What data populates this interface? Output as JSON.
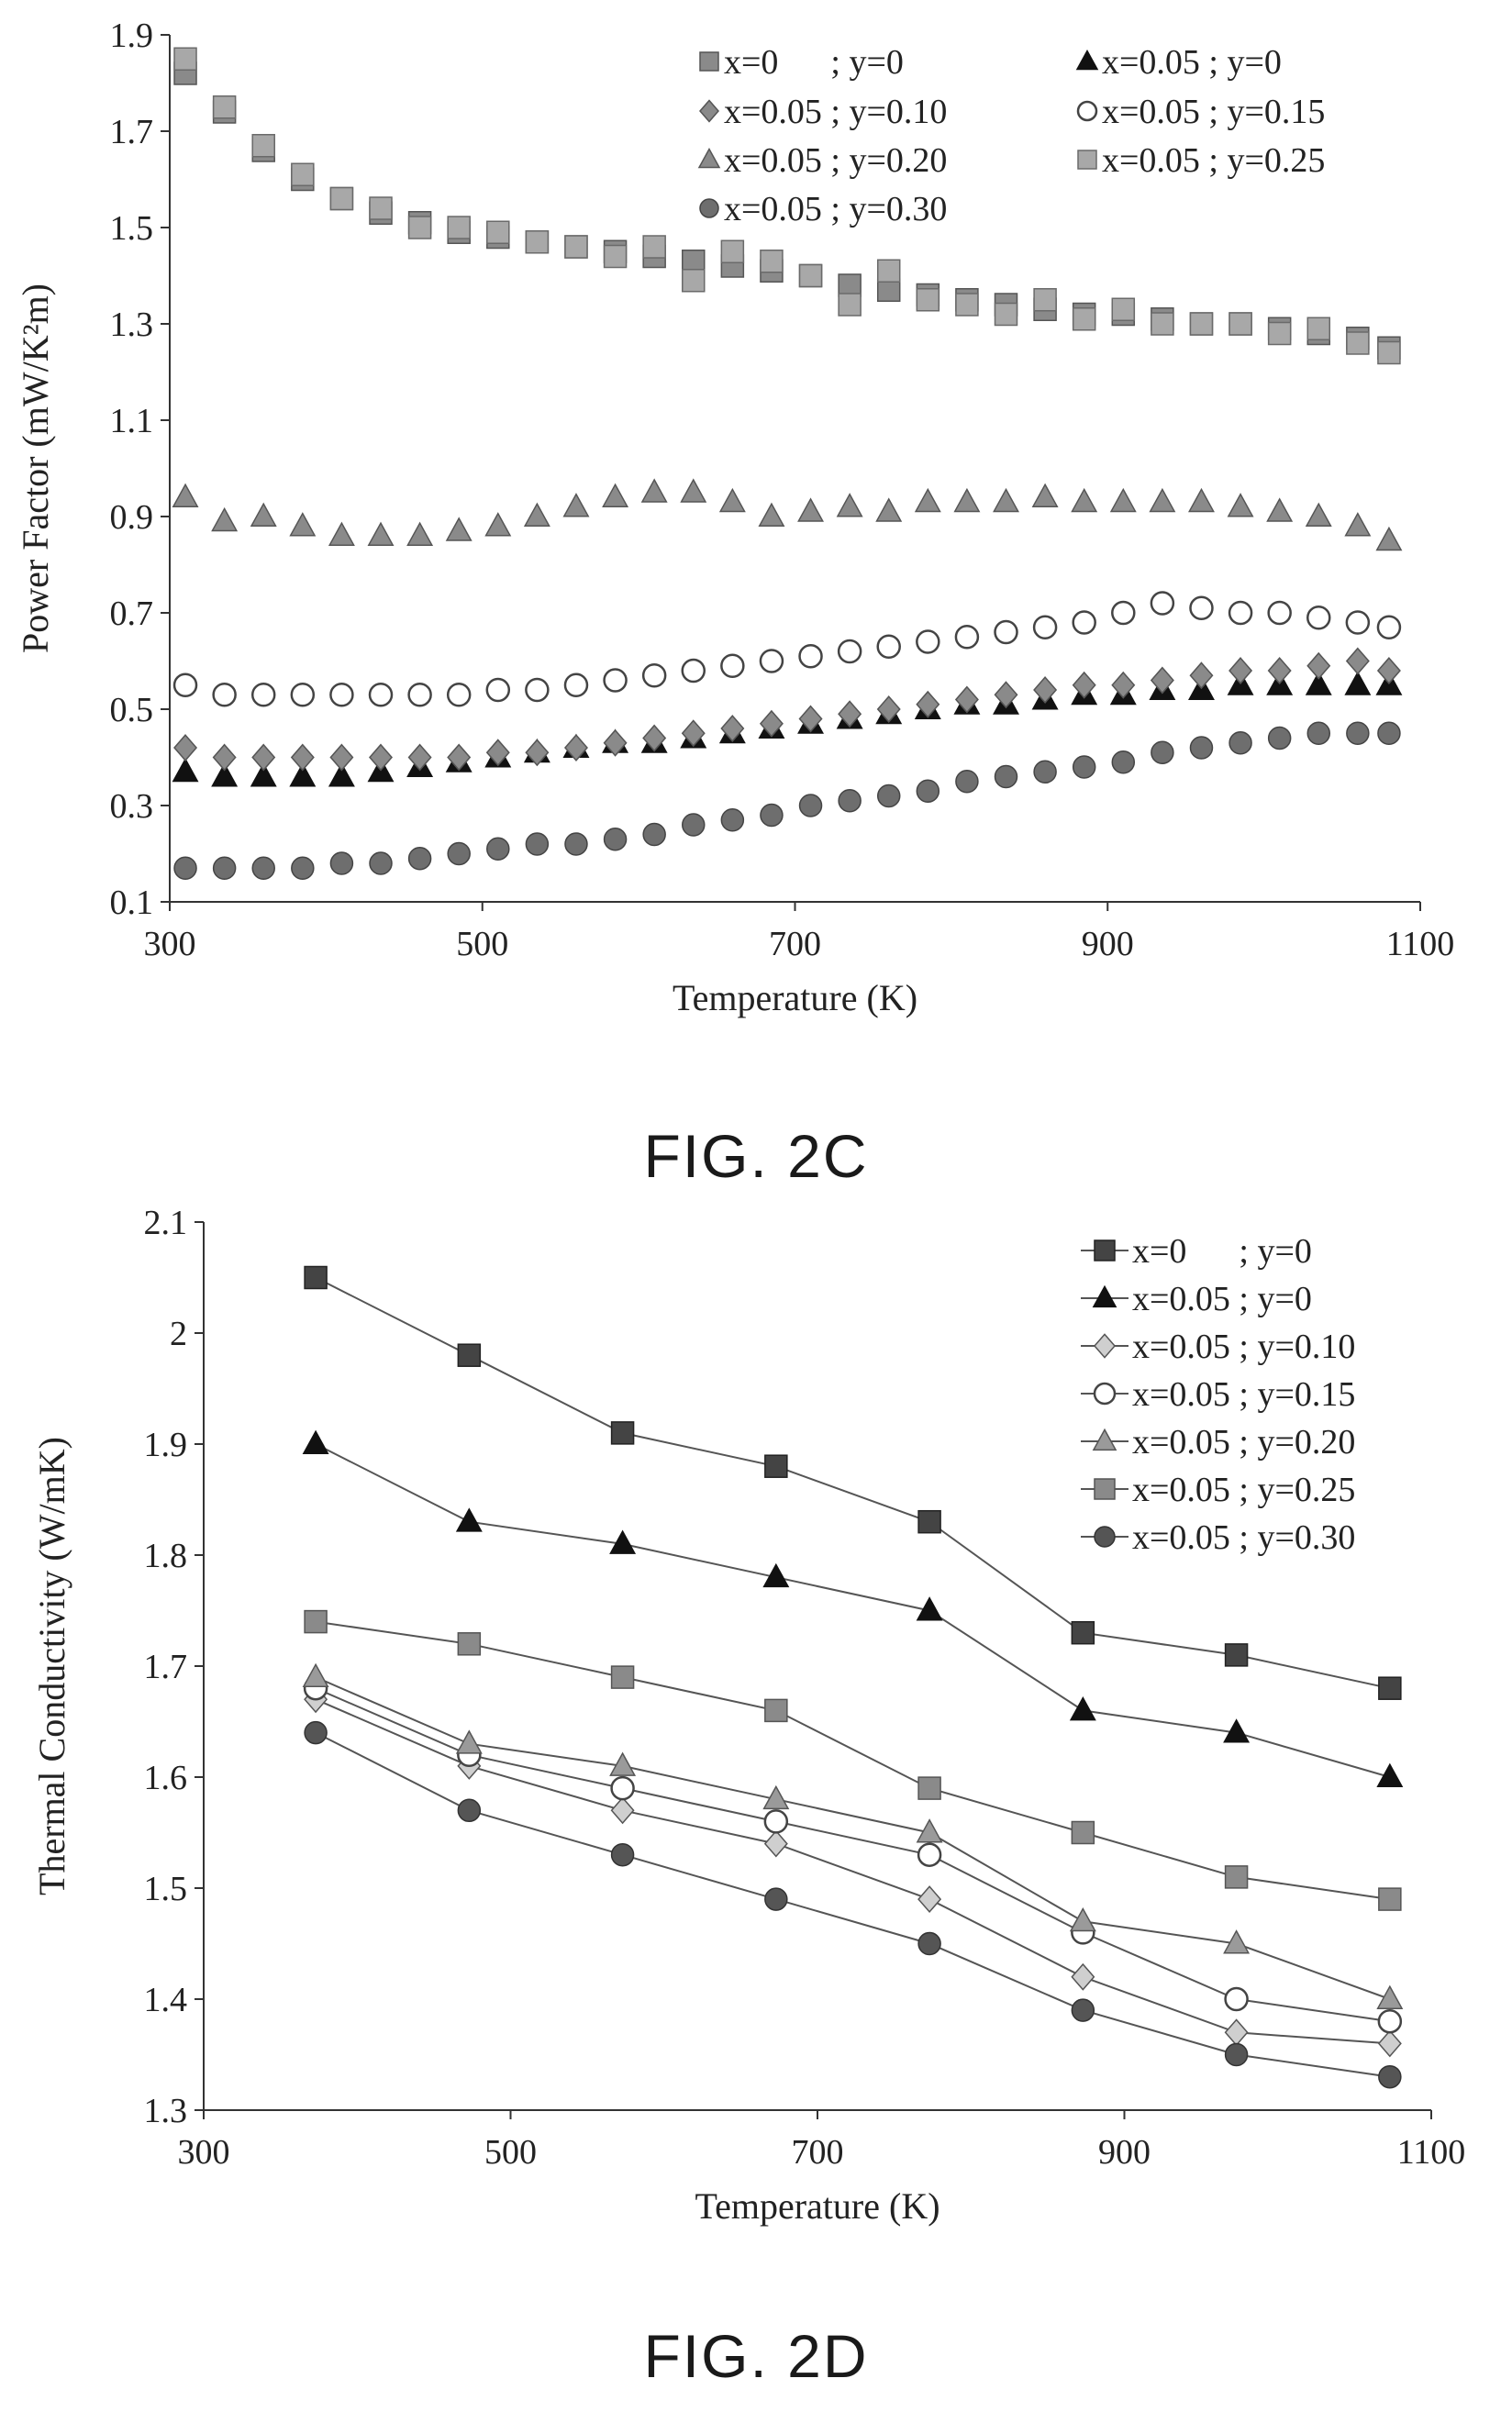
{
  "figures": [
    {
      "caption": "FIG. 2C",
      "chart_data": {
        "type": "scatter",
        "xlabel": "Temperature (K)",
        "ylabel": "Power Factor (mW/K²m)",
        "xlim": [
          300,
          1100
        ],
        "ylim": [
          0.1,
          1.9
        ],
        "xticks": [
          300,
          500,
          700,
          900,
          1100
        ],
        "yticks": [
          0.1,
          0.3,
          0.5,
          0.7,
          0.9,
          1.1,
          1.3,
          1.5,
          1.7,
          1.9
        ],
        "grid": false,
        "legend_position": "top-right",
        "x": [
          310,
          335,
          360,
          385,
          410,
          435,
          460,
          485,
          510,
          535,
          560,
          585,
          610,
          635,
          660,
          685,
          710,
          735,
          760,
          785,
          810,
          835,
          860,
          885,
          910,
          935,
          960,
          985,
          1010,
          1035,
          1060,
          1080
        ],
        "series": [
          {
            "name": "x=0      ; y=0",
            "marker": "square",
            "fill": "#8a8a8a",
            "stroke": "#555555",
            "values": [
              1.82,
              1.74,
              1.66,
              1.6,
              1.56,
              1.53,
              1.51,
              1.49,
              1.48,
              1.47,
              1.46,
              1.45,
              1.44,
              1.43,
              1.42,
              1.41,
              1.4,
              1.38,
              1.37,
              1.36,
              1.35,
              1.34,
              1.33,
              1.32,
              1.32,
              1.31,
              1.3,
              1.3,
              1.29,
              1.28,
              1.27,
              1.25
            ]
          },
          {
            "name": "x=0.05 ; y=0",
            "marker": "triangle",
            "fill": "#111111",
            "stroke": "#111111",
            "values": [
              0.37,
              0.36,
              0.36,
              0.36,
              0.36,
              0.37,
              0.38,
              0.39,
              0.4,
              0.41,
              0.42,
              0.43,
              0.43,
              0.44,
              0.45,
              0.46,
              0.47,
              0.48,
              0.49,
              0.5,
              0.51,
              0.51,
              0.52,
              0.53,
              0.53,
              0.54,
              0.54,
              0.55,
              0.55,
              0.55,
              0.55,
              0.55
            ]
          },
          {
            "name": "x=0.05 ; y=0.10",
            "marker": "diamond",
            "fill": "#8a8a8a",
            "stroke": "#555555",
            "values": [
              0.42,
              0.4,
              0.4,
              0.4,
              0.4,
              0.4,
              0.4,
              0.4,
              0.41,
              0.41,
              0.42,
              0.43,
              0.44,
              0.45,
              0.46,
              0.47,
              0.48,
              0.49,
              0.5,
              0.51,
              0.52,
              0.53,
              0.54,
              0.55,
              0.55,
              0.56,
              0.57,
              0.58,
              0.58,
              0.59,
              0.6,
              0.58
            ]
          },
          {
            "name": "x=0.05 ; y=0.15",
            "marker": "circle-open",
            "fill": "#ffffff",
            "stroke": "#444444",
            "values": [
              0.55,
              0.53,
              0.53,
              0.53,
              0.53,
              0.53,
              0.53,
              0.53,
              0.54,
              0.54,
              0.55,
              0.56,
              0.57,
              0.58,
              0.59,
              0.6,
              0.61,
              0.62,
              0.63,
              0.64,
              0.65,
              0.66,
              0.67,
              0.68,
              0.7,
              0.72,
              0.71,
              0.7,
              0.7,
              0.69,
              0.68,
              0.67
            ]
          },
          {
            "name": "x=0.05 ; y=0.20",
            "marker": "triangle",
            "fill": "#8a8a8a",
            "stroke": "#555555",
            "values": [
              0.94,
              0.89,
              0.9,
              0.88,
              0.86,
              0.86,
              0.86,
              0.87,
              0.88,
              0.9,
              0.92,
              0.94,
              0.95,
              0.95,
              0.93,
              0.9,
              0.91,
              0.92,
              0.91,
              0.93,
              0.93,
              0.93,
              0.94,
              0.93,
              0.93,
              0.93,
              0.93,
              0.92,
              0.91,
              0.9,
              0.88,
              0.85
            ]
          },
          {
            "name": "x=0.05 ; y=0.25",
            "marker": "square",
            "fill": "#a8a8a8",
            "stroke": "#6a6a6a",
            "values": [
              1.85,
              1.75,
              1.67,
              1.61,
              1.56,
              1.54,
              1.5,
              1.5,
              1.49,
              1.47,
              1.46,
              1.44,
              1.46,
              1.39,
              1.45,
              1.43,
              1.4,
              1.34,
              1.41,
              1.35,
              1.34,
              1.32,
              1.35,
              1.31,
              1.33,
              1.3,
              1.3,
              1.3,
              1.28,
              1.29,
              1.26,
              1.24
            ]
          },
          {
            "name": "x=0.05 ; y=0.30",
            "marker": "circle",
            "fill": "#6e6e6e",
            "stroke": "#444444",
            "values": [
              0.17,
              0.17,
              0.17,
              0.17,
              0.18,
              0.18,
              0.19,
              0.2,
              0.21,
              0.22,
              0.22,
              0.23,
              0.24,
              0.26,
              0.27,
              0.28,
              0.3,
              0.31,
              0.32,
              0.33,
              0.35,
              0.36,
              0.37,
              0.38,
              0.39,
              0.41,
              0.42,
              0.43,
              0.44,
              0.45,
              0.45,
              0.45
            ]
          }
        ]
      }
    },
    {
      "caption": "FIG. 2D",
      "chart_data": {
        "type": "line",
        "xlabel": "Temperature (K)",
        "ylabel": "Thermal Conductivity (W/mK)",
        "xlim": [
          300,
          1100
        ],
        "ylim": [
          1.3,
          2.1
        ],
        "xticks": [
          300,
          500,
          700,
          900,
          1100
        ],
        "yticks": [
          1.3,
          1.4,
          1.5,
          1.6,
          1.7,
          1.8,
          1.9,
          2,
          2.1
        ],
        "grid": false,
        "legend_position": "top-right",
        "x": [
          373,
          473,
          573,
          673,
          773,
          873,
          973,
          1073
        ],
        "series": [
          {
            "name": "x=0      ; y=0",
            "marker": "square",
            "fill": "#444444",
            "stroke": "#222222",
            "values": [
              2.05,
              1.98,
              1.91,
              1.88,
              1.83,
              1.73,
              1.71,
              1.68
            ]
          },
          {
            "name": "x=0.05 ; y=0",
            "marker": "triangle",
            "fill": "#111111",
            "stroke": "#111111",
            "values": [
              1.9,
              1.83,
              1.81,
              1.78,
              1.75,
              1.66,
              1.64,
              1.6
            ]
          },
          {
            "name": "x=0.05 ; y=0.10",
            "marker": "diamond",
            "fill": "#cfcfcf",
            "stroke": "#555555",
            "values": [
              1.67,
              1.61,
              1.57,
              1.54,
              1.49,
              1.42,
              1.37,
              1.36
            ]
          },
          {
            "name": "x=0.05 ; y=0.15",
            "marker": "circle-open",
            "fill": "#ffffff",
            "stroke": "#444444",
            "values": [
              1.68,
              1.62,
              1.59,
              1.56,
              1.53,
              1.46,
              1.4,
              1.38
            ]
          },
          {
            "name": "x=0.05 ; y=0.20",
            "marker": "triangle",
            "fill": "#9a9a9a",
            "stroke": "#555555",
            "values": [
              1.69,
              1.63,
              1.61,
              1.58,
              1.55,
              1.47,
              1.45,
              1.4
            ]
          },
          {
            "name": "x=0.05 ; y=0.25",
            "marker": "square",
            "fill": "#8a8a8a",
            "stroke": "#555555",
            "values": [
              1.74,
              1.72,
              1.69,
              1.66,
              1.59,
              1.55,
              1.51,
              1.49
            ]
          },
          {
            "name": "x=0.05 ; y=0.30",
            "marker": "circle",
            "fill": "#555555",
            "stroke": "#333333",
            "values": [
              1.64,
              1.57,
              1.53,
              1.49,
              1.45,
              1.39,
              1.35,
              1.33
            ]
          }
        ]
      }
    }
  ]
}
